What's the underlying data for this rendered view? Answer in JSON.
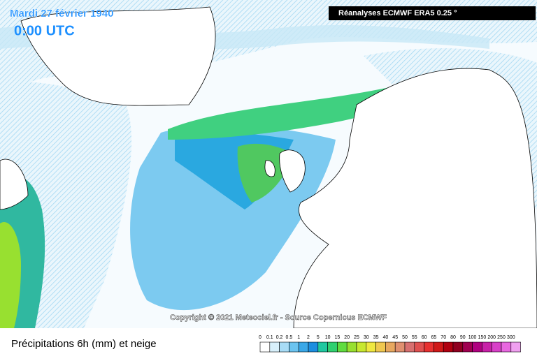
{
  "header": {
    "date": "Mardi 27 février 1940",
    "time": "0:00 UTC",
    "source": "Réanalyses ECMWF ERA5 0.25 °"
  },
  "map": {
    "copyright": "Copyright © 2021 Meteociel.fr - Source Copernicus ECMWF"
  },
  "legend": {
    "title": "Précipitations 6h (mm) et neige",
    "items": [
      {
        "label": 0,
        "color": "#ffffff"
      },
      {
        "label": 0.1,
        "color": "#d8f0fb"
      },
      {
        "label": 0.2,
        "color": "#a8dcf6"
      },
      {
        "label": 0.5,
        "color": "#6cc4f0"
      },
      {
        "label": 1,
        "color": "#3aa8e8"
      },
      {
        "label": 2,
        "color": "#1c8ee0"
      },
      {
        "label": 5,
        "color": "#20c8a0"
      },
      {
        "label": 10,
        "color": "#30d070"
      },
      {
        "label": 15,
        "color": "#60dc40"
      },
      {
        "label": 20,
        "color": "#98e030"
      },
      {
        "label": 25,
        "color": "#c8e830"
      },
      {
        "label": 30,
        "color": "#f0e840"
      },
      {
        "label": 35,
        "color": "#f0c850"
      },
      {
        "label": 40,
        "color": "#e8a860"
      },
      {
        "label": 45,
        "color": "#e09070"
      },
      {
        "label": 50,
        "color": "#d87070"
      },
      {
        "label": 55,
        "color": "#e05050"
      },
      {
        "label": 60,
        "color": "#e83030"
      },
      {
        "label": 65,
        "color": "#d01818"
      },
      {
        "label": 70,
        "color": "#b00010"
      },
      {
        "label": 80,
        "color": "#900020"
      },
      {
        "label": 90,
        "color": "#a00050"
      },
      {
        "label": 100,
        "color": "#b00080"
      },
      {
        "label": 150,
        "color": "#c820a8"
      },
      {
        "label": 200,
        "color": "#d840c8"
      },
      {
        "label": 250,
        "color": "#e868e0"
      },
      {
        "label": 300,
        "color": "#f0a0f0"
      }
    ]
  }
}
